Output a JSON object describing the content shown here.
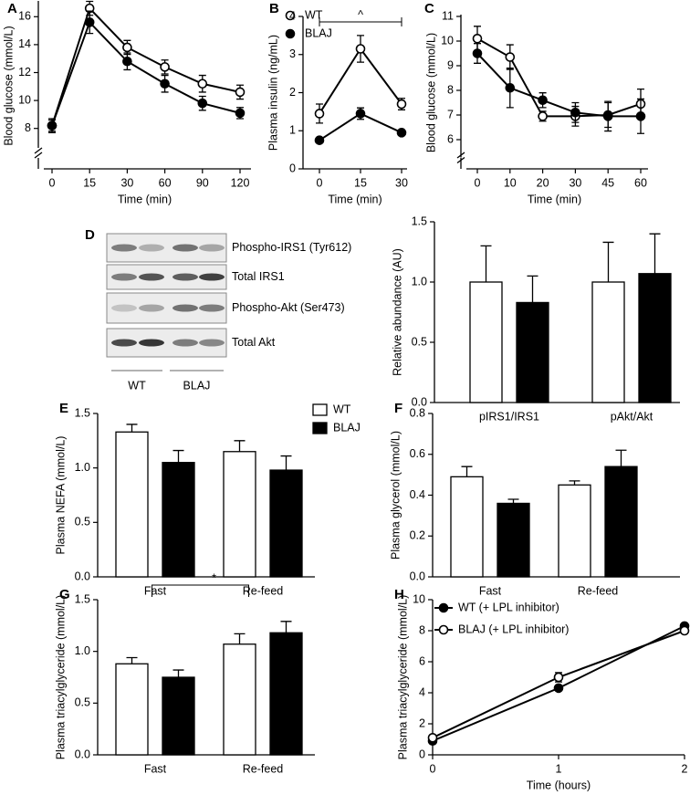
{
  "chart_data": [
    {
      "type": "line",
      "panel": "A",
      "x_label": "Time (min)",
      "y_label": "Blood glucose (mmol/L)",
      "categories": [
        "0",
        "15",
        "30",
        "60",
        "90",
        "120"
      ],
      "ylim": [
        7,
        17
      ],
      "yticks": [
        8,
        10,
        12,
        14,
        16
      ],
      "axis_break": true,
      "legend": "upper right",
      "series": [
        {
          "name": "WT",
          "color": "#000000",
          "fill": "#ffffff",
          "values": [
            8.2,
            16.6,
            13.8,
            12.4,
            11.2,
            10.6
          ],
          "errors": [
            0.4,
            0.5,
            0.5,
            0.5,
            0.6,
            0.5
          ]
        },
        {
          "name": "BLAJ",
          "color": "#000000",
          "fill": "#000000",
          "values": [
            8.2,
            15.6,
            12.8,
            11.2,
            9.8,
            9.1
          ],
          "errors": [
            0.5,
            0.8,
            0.6,
            0.6,
            0.5,
            0.4
          ]
        }
      ]
    },
    {
      "type": "line",
      "panel": "B",
      "x_label": "Time (min)",
      "y_label": "Plasma insulin (ng/mL)",
      "annotation": "^",
      "x": [
        0,
        15,
        30
      ],
      "xlim": [
        -6,
        32
      ],
      "xticks": [
        0,
        15,
        30
      ],
      "ylim": [
        0,
        4
      ],
      "yticks": [
        0,
        1,
        2,
        3,
        4
      ],
      "series": [
        {
          "color": "#000000",
          "fill": "#ffffff",
          "values": [
            1.45,
            3.15,
            1.7
          ],
          "errors": [
            0.25,
            0.35,
            0.15
          ]
        },
        {
          "color": "#000000",
          "fill": "#000000",
          "values": [
            0.75,
            1.45,
            0.95
          ],
          "errors": [
            0.05,
            0.15,
            0.05
          ]
        }
      ]
    },
    {
      "type": "line",
      "panel": "C",
      "x_label": "Time (min)",
      "y_label": "Blood glucose (mmol/L)",
      "categories": [
        "0",
        "10",
        "20",
        "30",
        "45",
        "60"
      ],
      "ylim": [
        5.5,
        11
      ],
      "yticks": [
        6,
        7,
        8,
        9,
        10,
        11
      ],
      "axis_break": true,
      "series": [
        {
          "color": "#000000",
          "fill": "#ffffff",
          "values": [
            10.1,
            9.35,
            6.95,
            6.95,
            7.0,
            7.45
          ],
          "errors": [
            0.5,
            0.5,
            0.2,
            0.4,
            0.5,
            0.6
          ]
        },
        {
          "color": "#000000",
          "fill": "#000000",
          "values": [
            9.5,
            8.1,
            7.6,
            7.1,
            6.95,
            6.95
          ],
          "errors": [
            0.4,
            0.8,
            0.3,
            0.4,
            0.6,
            0.7
          ]
        }
      ]
    },
    {
      "type": "bar",
      "y_label": "Relative abundance (AU)",
      "categories": [
        "pIRS1/IRS1",
        "pAkt/Akt"
      ],
      "ylim": [
        0,
        1.5
      ],
      "yticks": [
        {
          "value": 0,
          "label": "0.0"
        },
        0.5,
        {
          "value": 1,
          "label": "1.0"
        },
        1.5
      ],
      "series": [
        {
          "color": "#ffffff",
          "values": [
            1.0,
            1.0
          ],
          "errors": [
            0.3,
            0.33
          ]
        },
        {
          "color": "#000000",
          "values": [
            0.83,
            1.07
          ],
          "errors": [
            0.22,
            0.33
          ]
        }
      ]
    },
    {
      "type": "bar",
      "panel": "E",
      "y_label": "Plasma NEFA (mmol/L)",
      "categories": [
        "Fast",
        "Re-feed"
      ],
      "ylim": [
        0,
        1.5
      ],
      "legend": "upper right",
      "yticks": [
        {
          "value": 0,
          "label": "0.0"
        },
        0.5,
        {
          "value": 1,
          "label": "1.0"
        },
        1.5
      ],
      "series": [
        {
          "name": "WT",
          "color": "#ffffff",
          "values": [
            1.33,
            1.15
          ],
          "errors": [
            0.07,
            0.1
          ]
        },
        {
          "name": "BLAJ",
          "color": "#000000",
          "values": [
            1.05,
            0.98
          ],
          "errors": [
            0.11,
            0.13
          ]
        }
      ]
    },
    {
      "type": "bar",
      "panel": "F",
      "y_label": "Plasma glycerol (mmol/L)",
      "categories": [
        "Fast",
        "Re-feed"
      ],
      "ylim": [
        0,
        0.8
      ],
      "yticks": [
        {
          "value": 0,
          "label": "0.0"
        },
        0.2,
        0.4,
        0.6,
        0.8
      ],
      "series": [
        {
          "color": "#ffffff",
          "values": [
            0.49,
            0.45
          ],
          "errors": [
            0.05,
            0.02
          ]
        },
        {
          "color": "#000000",
          "values": [
            0.36,
            0.54
          ],
          "errors": [
            0.02,
            0.08
          ]
        }
      ]
    },
    {
      "type": "bar",
      "panel": "G",
      "y_label": "Plasma triacylglyceride (mmol/L)",
      "categories": [
        "Fast",
        "Re-feed"
      ],
      "ylim": [
        0,
        1.5
      ],
      "annotation": "*",
      "yticks": [
        {
          "value": 0,
          "label": "0.0"
        },
        0.5,
        {
          "value": 1,
          "label": "1.0"
        },
        1.5
      ],
      "series": [
        {
          "color": "#ffffff",
          "values": [
            0.88,
            1.07
          ],
          "errors": [
            0.06,
            0.1
          ]
        },
        {
          "color": "#000000",
          "values": [
            0.75,
            1.18
          ],
          "errors": [
            0.07,
            0.11
          ]
        }
      ]
    },
    {
      "type": "line",
      "panel": "H",
      "x_label": "Time (hours)",
      "y_label": "Plasma triacylglyceride (mmol/L)",
      "legend": "upper left",
      "x": [
        0,
        1,
        2
      ],
      "xlim": [
        0,
        2
      ],
      "xticks": [
        0,
        1,
        2
      ],
      "ylim": [
        0,
        10
      ],
      "yticks": [
        0,
        2,
        4,
        6,
        8,
        10
      ],
      "series": [
        {
          "name": "WT (+ LPL inhibitor)",
          "color": "#000000",
          "fill": "#000000",
          "values": [
            0.9,
            4.3,
            8.3
          ],
          "errors": [
            0.1,
            0.15,
            0.1
          ]
        },
        {
          "name": "BLAJ (+ LPL inhibitor)",
          "color": "#000000",
          "fill": "#ffffff",
          "values": [
            1.1,
            5.0,
            8.0
          ],
          "errors": [
            0.1,
            0.3,
            0.1
          ]
        }
      ]
    }
  ],
  "blot": {
    "panel": "D",
    "bands": [
      "Phospho-IRS1 (Tyr612)",
      "Total IRS1",
      "Phospho-Akt (Ser473)",
      "Total Akt"
    ],
    "groups": [
      "WT",
      "BLAJ"
    ]
  }
}
